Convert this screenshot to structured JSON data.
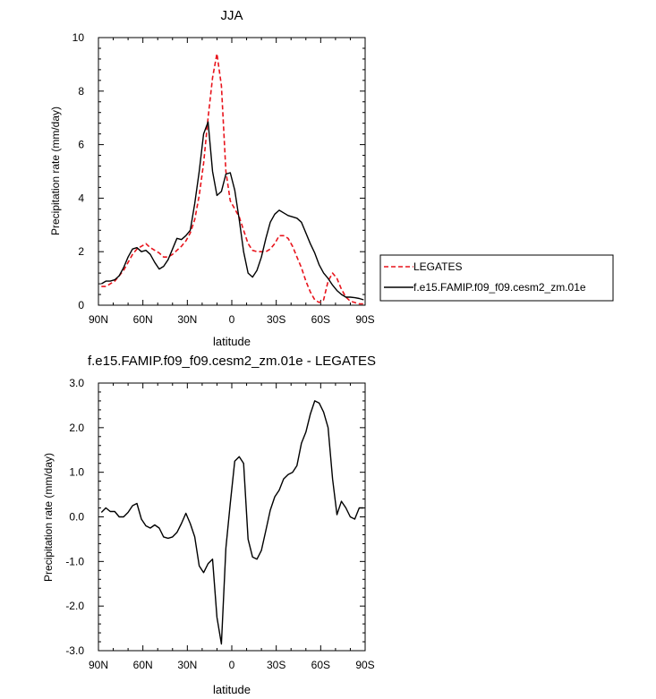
{
  "chart_data": [
    {
      "type": "line",
      "title": "JJA",
      "xlabel": "latitude",
      "ylabel": "Precipitation rate (mm/day)",
      "xlim": [
        90,
        -90
      ],
      "ylim": [
        0,
        10
      ],
      "x_ticks": [
        90,
        60,
        30,
        0,
        -30,
        -60,
        -90
      ],
      "x_tick_labels": [
        "90N",
        "60N",
        "30N",
        "0",
        "30S",
        "60S",
        "90S"
      ],
      "y_ticks": [
        0,
        2,
        4,
        6,
        8,
        10
      ],
      "y_tick_labels": [
        "0",
        "2",
        "4",
        "6",
        "8",
        "10"
      ],
      "legend_position": "right",
      "series": [
        {
          "name": "LEGATES",
          "color": "#e8141c",
          "dash": "dashed",
          "x": [
            88,
            85,
            82,
            79,
            76,
            73,
            70,
            67,
            64,
            61,
            58,
            55,
            52,
            49,
            46,
            43,
            40,
            37,
            34,
            31,
            28,
            25,
            22,
            19,
            16,
            13,
            10,
            7,
            4,
            1,
            -2,
            -5,
            -8,
            -11,
            -14,
            -17,
            -20,
            -23,
            -26,
            -29,
            -32,
            -35,
            -38,
            -41,
            -44,
            -47,
            -50,
            -53,
            -56,
            -59,
            -62,
            -65,
            -68,
            -71,
            -74,
            -77,
            -80,
            -83,
            -86,
            -89
          ],
          "y": [
            0.7,
            0.7,
            0.8,
            0.9,
            1.1,
            1.3,
            1.6,
            1.9,
            2.1,
            2.2,
            2.3,
            2.15,
            2.05,
            1.95,
            1.8,
            1.8,
            1.9,
            2.05,
            2.2,
            2.4,
            2.7,
            3.2,
            4.1,
            5.3,
            7.0,
            8.5,
            9.4,
            8.2,
            5.0,
            3.9,
            3.6,
            3.3,
            2.8,
            2.3,
            2.05,
            2.0,
            2.0,
            2.0,
            2.1,
            2.3,
            2.6,
            2.6,
            2.5,
            2.2,
            1.8,
            1.4,
            0.9,
            0.5,
            0.2,
            0.1,
            0.2,
            0.9,
            1.2,
            1.0,
            0.6,
            0.3,
            0.15,
            0.1,
            0.05,
            0.05
          ]
        },
        {
          "name": "f.e15.FAMIP.f09_f09.cesm2_zm.01e",
          "color": "#000000",
          "dash": "solid",
          "x": [
            88,
            85,
            82,
            79,
            76,
            73,
            70,
            67,
            64,
            61,
            58,
            55,
            52,
            49,
            46,
            43,
            40,
            37,
            34,
            31,
            28,
            25,
            22,
            19,
            16,
            13,
            10,
            7,
            4,
            1,
            -2,
            -5,
            -8,
            -11,
            -14,
            -17,
            -20,
            -23,
            -26,
            -29,
            -32,
            -35,
            -38,
            -41,
            -44,
            -47,
            -50,
            -53,
            -56,
            -59,
            -62,
            -65,
            -68,
            -71,
            -74,
            -77,
            -80,
            -83,
            -86,
            -89
          ],
          "y": [
            0.8,
            0.9,
            0.9,
            0.95,
            1.1,
            1.4,
            1.8,
            2.1,
            2.15,
            2.0,
            2.05,
            1.9,
            1.6,
            1.35,
            1.45,
            1.7,
            2.1,
            2.5,
            2.45,
            2.6,
            2.8,
            3.8,
            5.0,
            6.4,
            6.85,
            5.0,
            4.1,
            4.25,
            4.9,
            4.95,
            4.3,
            3.2,
            2.0,
            1.2,
            1.05,
            1.3,
            1.8,
            2.5,
            3.1,
            3.4,
            3.55,
            3.45,
            3.35,
            3.3,
            3.25,
            3.1,
            2.7,
            2.3,
            1.95,
            1.5,
            1.2,
            1.0,
            0.75,
            0.55,
            0.4,
            0.3,
            0.3,
            0.28,
            0.25,
            0.2
          ]
        }
      ]
    },
    {
      "type": "line",
      "title": "f.e15.FAMIP.f09_f09.cesm2_zm.01e - LEGATES",
      "xlabel": "latitude",
      "ylabel": "Precipitation rate (mm/day)",
      "xlim": [
        90,
        -90
      ],
      "ylim": [
        -3,
        3
      ],
      "x_ticks": [
        90,
        60,
        30,
        0,
        -30,
        -60,
        -90
      ],
      "x_tick_labels": [
        "90N",
        "60N",
        "30N",
        "0",
        "30S",
        "60S",
        "90S"
      ],
      "y_ticks": [
        -3,
        -2,
        -1,
        0,
        1,
        2,
        3
      ],
      "y_tick_labels": [
        "-3.0",
        "-2.0",
        "-1.0",
        "0.0",
        "1.0",
        "2.0",
        "3.0"
      ],
      "series": [
        {
          "color": "#000000",
          "dash": "solid",
          "x": [
            88,
            85,
            82,
            79,
            76,
            73,
            70,
            67,
            64,
            61,
            58,
            55,
            52,
            49,
            46,
            43,
            40,
            37,
            34,
            31,
            28,
            25,
            22,
            19,
            16,
            13,
            10,
            7,
            4,
            1,
            -2,
            -5,
            -8,
            -11,
            -14,
            -17,
            -20,
            -23,
            -26,
            -29,
            -32,
            -35,
            -38,
            -41,
            -44,
            -47,
            -50,
            -53,
            -56,
            -59,
            -62,
            -65,
            -68,
            -71,
            -74,
            -77,
            -80,
            -83,
            -86,
            -89
          ],
          "y": [
            0.1,
            0.2,
            0.12,
            0.12,
            0.0,
            0.0,
            0.1,
            0.25,
            0.3,
            -0.05,
            -0.2,
            -0.25,
            -0.18,
            -0.25,
            -0.45,
            -0.48,
            -0.45,
            -0.35,
            -0.15,
            0.08,
            -0.15,
            -0.45,
            -1.1,
            -1.25,
            -1.05,
            -0.95,
            -2.25,
            -2.85,
            -0.7,
            0.3,
            1.25,
            1.35,
            1.2,
            -0.5,
            -0.9,
            -0.95,
            -0.75,
            -0.3,
            0.15,
            0.45,
            0.6,
            0.85,
            0.95,
            1.0,
            1.15,
            1.65,
            1.9,
            2.3,
            2.6,
            2.55,
            2.35,
            2.0,
            0.85,
            0.05,
            0.35,
            0.2,
            0.0,
            -0.05,
            0.2,
            0.2
          ]
        }
      ]
    }
  ]
}
